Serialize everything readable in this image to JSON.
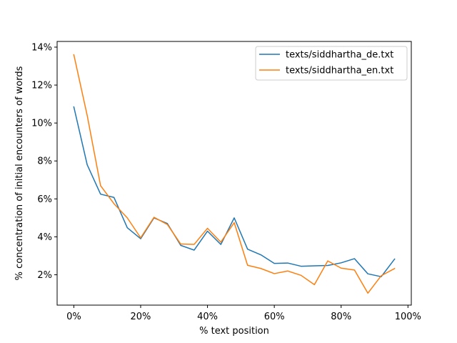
{
  "chart_data": {
    "type": "line",
    "xlabel": "% text position",
    "ylabel": "% concentration of initial encounters of words",
    "xlim": [
      -5,
      101
    ],
    "ylim": [
      0.4,
      14.3
    ],
    "xticks": [
      0,
      20,
      40,
      60,
      80,
      100
    ],
    "xtick_labels": [
      "0%",
      "20%",
      "40%",
      "60%",
      "80%",
      "100%"
    ],
    "yticks": [
      2,
      4,
      6,
      8,
      10,
      12,
      14
    ],
    "ytick_labels": [
      "2%",
      "4%",
      "6%",
      "8%",
      "10%",
      "12%",
      "14%"
    ],
    "grid": false,
    "legend_position": "top-right",
    "x": [
      0,
      4,
      8,
      12,
      16,
      20,
      24,
      28,
      32,
      36,
      40,
      44,
      48,
      52,
      56,
      60,
      64,
      68,
      72,
      76,
      80,
      84,
      88,
      92,
      96
    ],
    "series": [
      {
        "name": "texts/siddhartha_de.txt",
        "color": "#1f77b4",
        "values": [
          10.85,
          7.8,
          6.25,
          6.08,
          4.48,
          3.9,
          5.0,
          4.7,
          3.55,
          3.3,
          4.3,
          3.6,
          5.0,
          3.35,
          3.05,
          2.6,
          2.62,
          2.45,
          2.47,
          2.49,
          2.63,
          2.85,
          2.05,
          1.9,
          2.83
        ]
      },
      {
        "name": "texts/siddhartha_en.txt",
        "color": "#ff7f0e",
        "values": [
          13.6,
          10.4,
          6.7,
          5.75,
          5.0,
          3.95,
          5.03,
          4.65,
          3.62,
          3.6,
          4.45,
          3.72,
          4.75,
          2.5,
          2.33,
          2.06,
          2.2,
          1.97,
          1.48,
          2.73,
          2.35,
          2.25,
          1.03,
          1.95,
          2.33
        ]
      }
    ]
  }
}
